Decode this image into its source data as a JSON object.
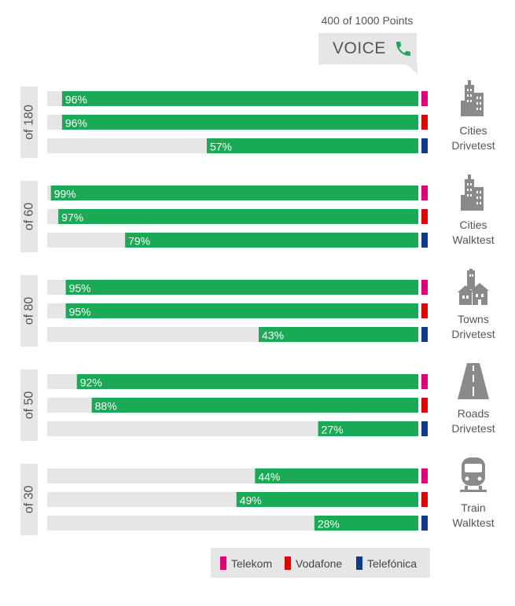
{
  "header": {
    "subtitle": "400 of 1000 Points",
    "title": "VOICE"
  },
  "colors": {
    "bar_fill": "#1aaa55",
    "track": "#e6e6e6",
    "telekom": "#e2007a",
    "vodafone": "#e60000",
    "telefonica": "#0a3c8c",
    "icon": "#8a8a8a"
  },
  "legend": [
    {
      "label": "Telekom",
      "color_key": "telekom"
    },
    {
      "label": "Vodafone",
      "color_key": "vodafone"
    },
    {
      "label": "Telefónica",
      "color_key": "telefonica"
    }
  ],
  "chart_data": {
    "type": "bar",
    "orientation": "horizontal",
    "xlim": [
      0,
      100
    ],
    "unit": "%",
    "groups": [
      {
        "weight_label": "of 180",
        "category": [
          "Cities",
          "Drivetest"
        ],
        "icon": "city-buildings-icon",
        "values": {
          "Telekom": 96,
          "Vodafone": 96,
          "Telefónica": 57
        }
      },
      {
        "weight_label": "of 60",
        "category": [
          "Cities",
          "Walktest"
        ],
        "icon": "city-buildings-icon",
        "values": {
          "Telekom": 99,
          "Vodafone": 97,
          "Telefónica": 79
        }
      },
      {
        "weight_label": "of 80",
        "category": [
          "Towns",
          "Drivetest"
        ],
        "icon": "town-houses-icon",
        "values": {
          "Telekom": 95,
          "Vodafone": 95,
          "Telefónica": 43
        }
      },
      {
        "weight_label": "of 50",
        "category": [
          "Roads",
          "Drivetest"
        ],
        "icon": "road-icon",
        "values": {
          "Telekom": 92,
          "Vodafone": 88,
          "Telefónica": 27
        }
      },
      {
        "weight_label": "of 30",
        "category": [
          "Train",
          "Walktest"
        ],
        "icon": "train-icon",
        "values": {
          "Telekom": 44,
          "Vodafone": 49,
          "Telefónica": 28
        }
      }
    ],
    "series": [
      "Telekom",
      "Vodafone",
      "Telefónica"
    ]
  }
}
